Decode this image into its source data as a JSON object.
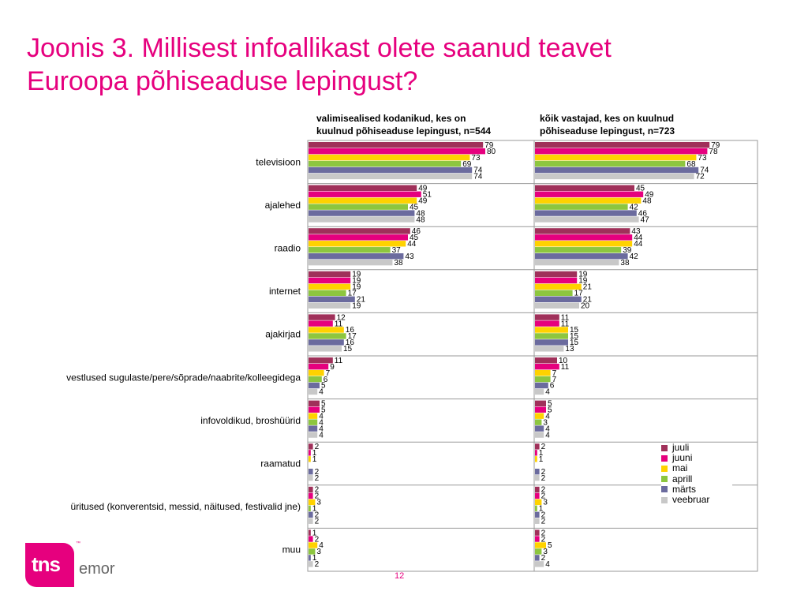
{
  "slide": {
    "title_line1": "Joonis 3. Millisest infoallikast olete saanud teavet",
    "title_line2": "Euroopa põhiseaduse lepingust?",
    "page_number": "12",
    "logo_text": "tns",
    "logo_suffix": "emor",
    "logo_tm": "™"
  },
  "chart_data": {
    "type": "bar",
    "orientation": "horizontal",
    "categories": [
      "televisioon",
      "ajalehed",
      "raadio",
      "internet",
      "ajakirjad",
      "vestlused sugulaste/pere/sõprade/naabrite/kolleegidega",
      "infovoldikud, broshüürid",
      "raamatud",
      "üritused (konverentsid, messid, näitused, festivalid jne)",
      "muu"
    ],
    "series_names": [
      "juuli",
      "juuni",
      "mai",
      "aprill",
      "märts",
      "veebruar"
    ],
    "colors": [
      "#a0305a",
      "#e6007e",
      "#ffd200",
      "#8dc63f",
      "#6b6b9e",
      "#c8c8c8"
    ],
    "legend_position": "right, lower panel",
    "xlim": [
      0,
      100
    ],
    "panels": [
      {
        "title_line1": "valimisealised kodanikud, kes on",
        "title_line2": "kuulnud põhiseaduse lepingust, n=544",
        "values": [
          [
            79,
            80,
            73,
            69,
            74,
            74
          ],
          [
            49,
            51,
            49,
            45,
            48,
            48
          ],
          [
            46,
            45,
            44,
            37,
            43,
            38
          ],
          [
            19,
            19,
            19,
            17,
            21,
            19
          ],
          [
            12,
            11,
            16,
            17,
            16,
            15
          ],
          [
            11,
            9,
            7,
            6,
            5,
            4
          ],
          [
            5,
            5,
            4,
            4,
            4,
            4
          ],
          [
            2,
            1,
            1,
            0,
            2,
            2
          ],
          [
            2,
            2,
            3,
            1,
            2,
            2
          ],
          [
            1,
            2,
            4,
            3,
            1,
            2
          ]
        ]
      },
      {
        "title_line1": "kõik vastajad, kes on kuulnud",
        "title_line2": "põhiseaduse lepingust, n=723",
        "values": [
          [
            79,
            78,
            73,
            68,
            74,
            72
          ],
          [
            45,
            49,
            48,
            42,
            46,
            47
          ],
          [
            43,
            44,
            44,
            39,
            42,
            38
          ],
          [
            19,
            19,
            21,
            17,
            21,
            20
          ],
          [
            11,
            11,
            15,
            15,
            15,
            13
          ],
          [
            10,
            11,
            7,
            7,
            6,
            4
          ],
          [
            5,
            5,
            4,
            3,
            4,
            4
          ],
          [
            2,
            1,
            1,
            0,
            2,
            2
          ],
          [
            2,
            2,
            3,
            1,
            2,
            2
          ],
          [
            2,
            2,
            5,
            3,
            2,
            4
          ]
        ]
      }
    ]
  }
}
